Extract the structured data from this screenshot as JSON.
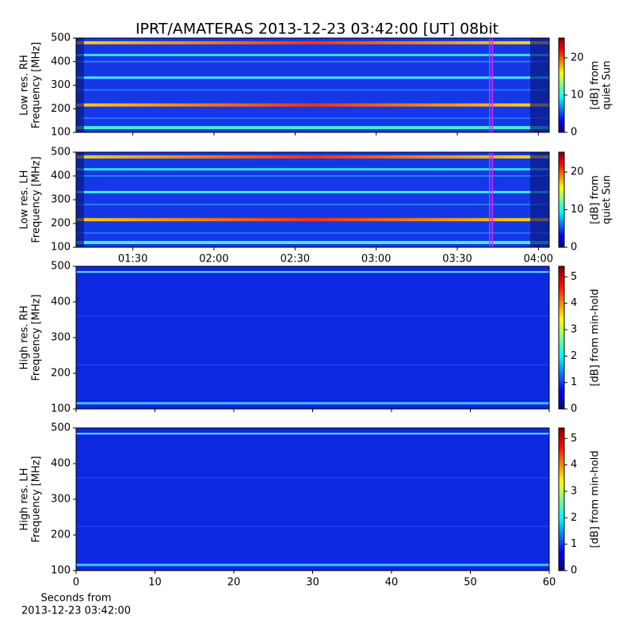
{
  "title": "IPRT/AMATERAS 2013-12-23 03:42:00 [UT]   08bit",
  "chart_data": [
    {
      "type": "heatmap",
      "ylabel": [
        "Low res. RH",
        "Frequency [MHz]"
      ],
      "ylim": [
        100,
        500
      ],
      "yticks": [
        100,
        200,
        300,
        400,
        500
      ],
      "xlim": [
        "01:09",
        "04:04"
      ],
      "colorbar": {
        "label": [
          "[dB] from",
          "quiet Sun"
        ],
        "lim": [
          0,
          25.3
        ],
        "ticks": [
          0,
          10,
          20
        ],
        "colormap": "jet"
      },
      "highlight": {
        "x": [
          "03:42",
          "03:43"
        ],
        "color": "#cc33ff"
      }
    },
    {
      "type": "heatmap",
      "ylabel": [
        "Low res. LH",
        "Frequency [MHz]"
      ],
      "ylim": [
        100,
        500
      ],
      "yticks": [
        100,
        200,
        300,
        400,
        500
      ],
      "xlim": [
        "01:09",
        "04:04"
      ],
      "xticks": [
        "01:30",
        "02:00",
        "02:30",
        "03:00",
        "03:30",
        "04:00"
      ],
      "colorbar": {
        "label": [
          "[dB] from",
          "quiet Sun"
        ],
        "lim": [
          0,
          25.3
        ],
        "ticks": [
          0,
          10,
          20
        ],
        "colormap": "jet"
      },
      "highlight": {
        "x": [
          "03:42",
          "03:43"
        ],
        "color": "#cc33ff"
      }
    },
    {
      "type": "heatmap",
      "ylabel": [
        "High res. RH",
        "Frequency [MHz]"
      ],
      "ylim": [
        100,
        500
      ],
      "yticks": [
        100,
        200,
        300,
        400,
        500
      ],
      "xlim": [
        0,
        60
      ],
      "colorbar": {
        "label": [
          "[dB] from min-hold"
        ],
        "lim": [
          0,
          5.4
        ],
        "ticks": [
          0,
          1,
          2,
          3,
          4,
          5
        ],
        "colormap": "jet"
      }
    },
    {
      "type": "heatmap",
      "ylabel": [
        "High res. LH",
        "Frequency [MHz]"
      ],
      "ylim": [
        100,
        500
      ],
      "yticks": [
        100,
        200,
        300,
        400,
        500
      ],
      "xlim": [
        0,
        60
      ],
      "xticks": [
        0,
        10,
        20,
        30,
        40,
        50,
        60
      ],
      "xlabel": [
        "Seconds from",
        "2013-12-23 03:42:00"
      ],
      "colorbar": {
        "label": [
          "[dB] from min-hold"
        ],
        "lim": [
          0,
          5.4
        ],
        "ticks": [
          0,
          1,
          2,
          3,
          4,
          5
        ],
        "colormap": "jet"
      }
    }
  ]
}
